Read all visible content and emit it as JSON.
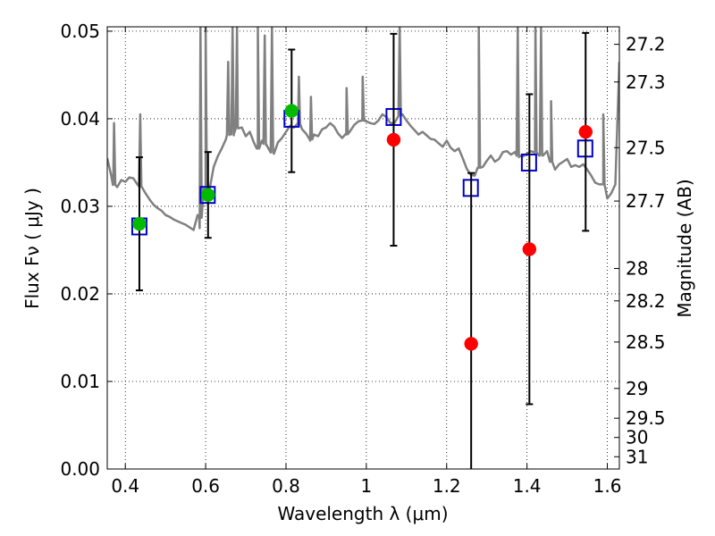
{
  "chart_data": {
    "type": "scatter",
    "xlabel": "Wavelength  λ (μm)",
    "ylabel": "Flux  Fν  ( μJy )",
    "y2label": "Magnitude (AB)",
    "xlim": [
      0.355,
      1.63
    ],
    "ylim": [
      0.0,
      0.0505
    ],
    "grid": true,
    "x_ticks": [
      0.4,
      0.6,
      0.8,
      1.0,
      1.2,
      1.4,
      1.6
    ],
    "x_tick_labels": [
      "0.4",
      "0.6",
      "0.8",
      "1",
      "1.2",
      "1.4",
      "1.6"
    ],
    "y_ticks": [
      0.0,
      0.01,
      0.02,
      0.03,
      0.04,
      0.05
    ],
    "y_tick_labels": [
      "0.00",
      "0.01",
      "0.02",
      "0.03",
      "0.04",
      "0.05"
    ],
    "y2_ticks": [
      {
        "label": "27.2",
        "flux": 0.0485
      },
      {
        "label": "27.3",
        "flux": 0.0442
      },
      {
        "label": "27.5",
        "flux": 0.0367
      },
      {
        "label": "27.7",
        "flux": 0.0306
      },
      {
        "label": "28",
        "flux": 0.0229
      },
      {
        "label": "28.2",
        "flux": 0.0192
      },
      {
        "label": "28.5",
        "flux": 0.0145
      },
      {
        "label": "29",
        "flux": 0.0092
      },
      {
        "label": "29.5",
        "flux": 0.0058
      },
      {
        "label": "30",
        "flux": 0.0036
      },
      {
        "label": "31",
        "flux": 0.0014
      }
    ],
    "model_spectrum": {
      "color": "#808080",
      "x": [
        0.355,
        0.36,
        0.365,
        0.37,
        0.38,
        0.39,
        0.4,
        0.41,
        0.42,
        0.43,
        0.44,
        0.45,
        0.46,
        0.47,
        0.48,
        0.49,
        0.5,
        0.51,
        0.52,
        0.53,
        0.54,
        0.55,
        0.56,
        0.57,
        0.58,
        0.585,
        0.59,
        0.595,
        0.6,
        0.61,
        0.62,
        0.63,
        0.64,
        0.65,
        0.66,
        0.67,
        0.68,
        0.69,
        0.7,
        0.71,
        0.72,
        0.73,
        0.74,
        0.75,
        0.76,
        0.77,
        0.78,
        0.79,
        0.8,
        0.81,
        0.82,
        0.83,
        0.84,
        0.85,
        0.86,
        0.87,
        0.88,
        0.89,
        0.9,
        0.91,
        0.92,
        0.93,
        0.94,
        0.95,
        0.96,
        0.97,
        0.98,
        0.99,
        1.0,
        1.01,
        1.02,
        1.03,
        1.04,
        1.05,
        1.06,
        1.07,
        1.08,
        1.09,
        1.1,
        1.11,
        1.12,
        1.13,
        1.14,
        1.15,
        1.16,
        1.17,
        1.18,
        1.19,
        1.2,
        1.21,
        1.22,
        1.23,
        1.24,
        1.25,
        1.26,
        1.27,
        1.28,
        1.29,
        1.3,
        1.31,
        1.32,
        1.33,
        1.34,
        1.35,
        1.36,
        1.37,
        1.38,
        1.39,
        1.4,
        1.41,
        1.42,
        1.43,
        1.44,
        1.45,
        1.46,
        1.47,
        1.48,
        1.49,
        1.5,
        1.51,
        1.52,
        1.53,
        1.54,
        1.55,
        1.56,
        1.57,
        1.58,
        1.59,
        1.6,
        1.61,
        1.62,
        1.63
      ],
      "y": [
        0.0355,
        0.0345,
        0.0335,
        0.0325,
        0.0322,
        0.033,
        0.0328,
        0.0333,
        0.0332,
        0.0325,
        0.0322,
        0.0315,
        0.0308,
        0.0302,
        0.0298,
        0.0295,
        0.029,
        0.0288,
        0.0285,
        0.0283,
        0.0281,
        0.0279,
        0.0276,
        0.0273,
        0.029,
        0.0275,
        0.0305,
        0.032,
        0.0318,
        0.032,
        0.0345,
        0.0357,
        0.0366,
        0.0376,
        0.0385,
        0.0381,
        0.0391,
        0.039,
        0.038,
        0.0385,
        0.0373,
        0.0366,
        0.0375,
        0.037,
        0.0363,
        0.036,
        0.0373,
        0.0378,
        0.0385,
        0.0392,
        0.039,
        0.0396,
        0.0388,
        0.0383,
        0.0375,
        0.0382,
        0.038,
        0.0388,
        0.039,
        0.0395,
        0.0391,
        0.0383,
        0.0378,
        0.0382,
        0.0386,
        0.0393,
        0.0397,
        0.0398,
        0.0397,
        0.0395,
        0.0394,
        0.0398,
        0.0405,
        0.0402,
        0.0395,
        0.0395,
        0.0403,
        0.0405,
        0.0398,
        0.0392,
        0.0387,
        0.0382,
        0.0385,
        0.0381,
        0.0377,
        0.0376,
        0.0372,
        0.0368,
        0.0375,
        0.0367,
        0.0363,
        0.0366,
        0.0355,
        0.0343,
        0.0336,
        0.0335,
        0.0344,
        0.0345,
        0.0352,
        0.0358,
        0.0351,
        0.0354,
        0.0362,
        0.0363,
        0.0359,
        0.0362,
        0.0356,
        0.0357,
        0.036,
        0.0363,
        0.0362,
        0.0358,
        0.0358,
        0.0363,
        0.0351,
        0.0342,
        0.0348,
        0.0351,
        0.0354,
        0.0345,
        0.0347,
        0.0345,
        0.0348,
        0.0342,
        0.0335,
        0.0327,
        0.0325,
        0.0325,
        0.0309,
        0.0315,
        0.0325,
        0.0465
      ],
      "spikes": [
        {
          "x": 0.372,
          "y": 0.0395
        },
        {
          "x": 0.437,
          "y": 0.0405
        },
        {
          "x": 0.587,
          "y": 0.0505
        },
        {
          "x": 0.6,
          "y": 0.0505
        },
        {
          "x": 0.656,
          "y": 0.0465
        },
        {
          "x": 0.667,
          "y": 0.0505
        },
        {
          "x": 0.678,
          "y": 0.0505
        },
        {
          "x": 0.73,
          "y": 0.0505
        },
        {
          "x": 0.747,
          "y": 0.0495
        },
        {
          "x": 0.765,
          "y": 0.0505
        },
        {
          "x": 0.832,
          "y": 0.0448
        },
        {
          "x": 0.862,
          "y": 0.0425
        },
        {
          "x": 0.951,
          "y": 0.0435
        },
        {
          "x": 0.991,
          "y": 0.0448
        },
        {
          "x": 1.083,
          "y": 0.0505
        },
        {
          "x": 1.28,
          "y": 0.0505
        },
        {
          "x": 1.377,
          "y": 0.0505
        },
        {
          "x": 1.421,
          "y": 0.0505
        },
        {
          "x": 1.435,
          "y": 0.0505
        },
        {
          "x": 1.46,
          "y": 0.042
        },
        {
          "x": 1.59,
          "y": 0.0405
        }
      ]
    },
    "model_points": {
      "marker": "open-square",
      "color": "#0000cc",
      "points": [
        {
          "x": 0.435,
          "y": 0.0277
        },
        {
          "x": 0.605,
          "y": 0.0313
        },
        {
          "x": 0.814,
          "y": 0.04
        },
        {
          "x": 1.068,
          "y": 0.0402
        },
        {
          "x": 1.26,
          "y": 0.0321
        },
        {
          "x": 1.405,
          "y": 0.035
        },
        {
          "x": 1.545,
          "y": 0.0366
        }
      ]
    },
    "observations": [
      {
        "x": 0.435,
        "y": 0.028,
        "err": 0.0076,
        "color": "#00bb00"
      },
      {
        "x": 0.606,
        "y": 0.0313,
        "err": 0.0049,
        "color": "#00bb00"
      },
      {
        "x": 0.814,
        "y": 0.0409,
        "err": 0.007,
        "color": "#00bb00"
      },
      {
        "x": 1.068,
        "y": 0.0376,
        "err": 0.0121,
        "color": "#ff0000"
      },
      {
        "x": 1.261,
        "y": 0.0143,
        "err": 0.0195,
        "color": "#ff0000"
      },
      {
        "x": 1.406,
        "y": 0.0251,
        "err": 0.0177,
        "color": "#ff0000"
      },
      {
        "x": 1.546,
        "y": 0.0385,
        "err": 0.0113,
        "color": "#ff0000"
      }
    ]
  }
}
